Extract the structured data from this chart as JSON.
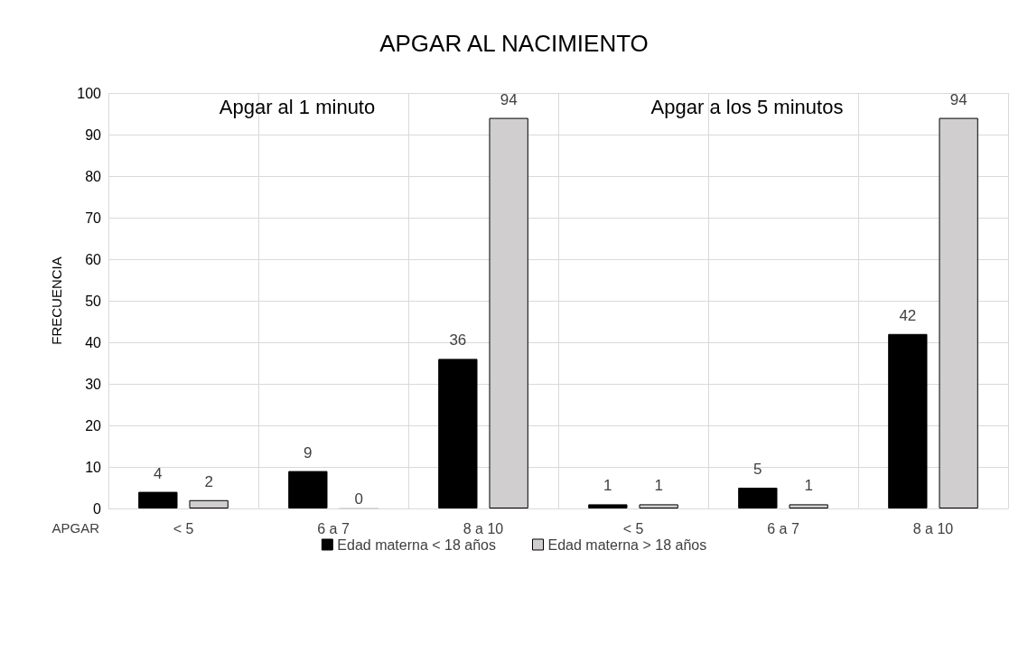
{
  "chart_data": {
    "type": "bar",
    "title": "APGAR AL NACIMIENTO",
    "xlabel": "APGAR",
    "ylabel": "FRECUENCIA",
    "categories": [
      "< 5",
      "6 a 7",
      "8 a 10",
      "< 5",
      "6 a 7",
      "8 a 10"
    ],
    "series": [
      {
        "name": "Edad materna < 18 años",
        "color": "#000000",
        "values": [
          4,
          9,
          36,
          1,
          5,
          42
        ]
      },
      {
        "name": "Edad materna > 18 años",
        "color": "#d0cece",
        "values": [
          2,
          0,
          94,
          1,
          1,
          94
        ]
      }
    ],
    "ylim": [
      0,
      100
    ],
    "yticks": [
      0,
      10,
      20,
      30,
      40,
      50,
      60,
      70,
      80,
      90,
      100
    ],
    "annotations": [
      "Apgar al 1 minuto",
      "Apgar a los 5 minutos"
    ],
    "data_labels": true,
    "grid": true,
    "legend": "bottom"
  }
}
